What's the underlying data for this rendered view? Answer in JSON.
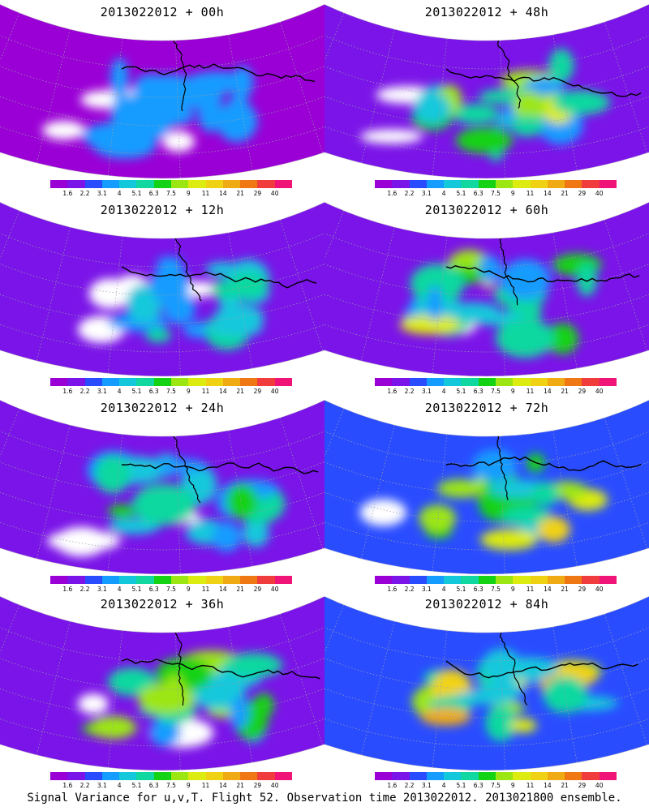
{
  "panels": [
    {
      "title": "2013022012 + 00h",
      "level": 0.05
    },
    {
      "title": "2013022012 + 48h",
      "level": 0.55
    },
    {
      "title": "2013022012 + 12h",
      "level": 0.25
    },
    {
      "title": "2013022012 + 60h",
      "level": 0.65
    },
    {
      "title": "2013022012 + 24h",
      "level": 0.35
    },
    {
      "title": "2013022012 + 72h",
      "level": 0.75
    },
    {
      "title": "2013022012 + 36h",
      "level": 0.45
    },
    {
      "title": "2013022012 + 84h",
      "level": 0.85
    }
  ],
  "colorbar": {
    "colors": [
      "#9a00d6",
      "#7a14e8",
      "#2a4cff",
      "#149cff",
      "#14c8dc",
      "#10d8a0",
      "#14d214",
      "#9ce614",
      "#dcec10",
      "#f0d214",
      "#f0aa14",
      "#f07814",
      "#f03c3c",
      "#f01478"
    ],
    "labels": [
      "1.6",
      "2.2",
      "3.1",
      "4",
      "5.1",
      "6.3",
      "7.5",
      "9",
      "11",
      "14",
      "21",
      "29",
      "40"
    ]
  },
  "caption": "Signal Variance for u,v,T. Flight 52. Observation time 2013022012. 2013021800 ensemble."
}
